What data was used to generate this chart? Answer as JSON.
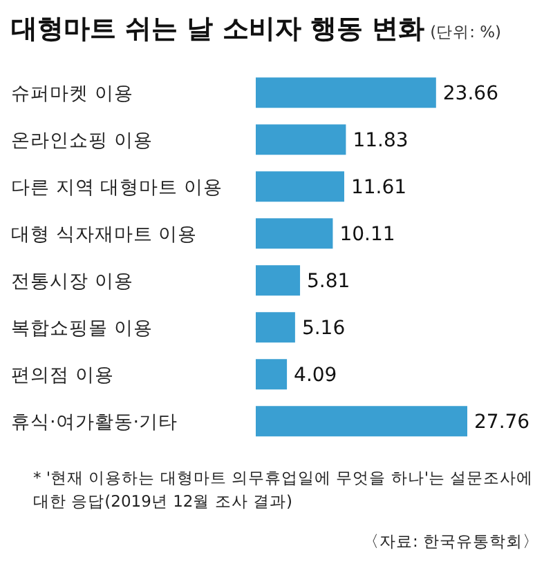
{
  "chart_data": {
    "type": "bar",
    "orientation": "horizontal",
    "title": "대형마트 쉬는 날 소비자 행동 변화",
    "subtitle": "(단위: %)",
    "categories": [
      "슈퍼마켓 이용",
      "온라인쇼핑 이용",
      "다른 지역 대형마트 이용",
      "대형 식자재마트 이용",
      "전통시장 이용",
      "복합쇼핑몰 이용",
      "편의점 이용",
      "휴식·여가활동·기타"
    ],
    "values": [
      23.66,
      11.83,
      11.61,
      10.11,
      5.81,
      5.16,
      4.09,
      27.76
    ],
    "color": "#3a9fd2",
    "data_labels": true,
    "tick_labels": "y",
    "annotations": [
      "* '현재 이용하는 대형마트 의무휴업일에 무엇을 하나'는 설문조사에 대한 응답(2019년 12월 조사 결과)",
      "〈자료: 한국유통학회〉"
    ]
  }
}
